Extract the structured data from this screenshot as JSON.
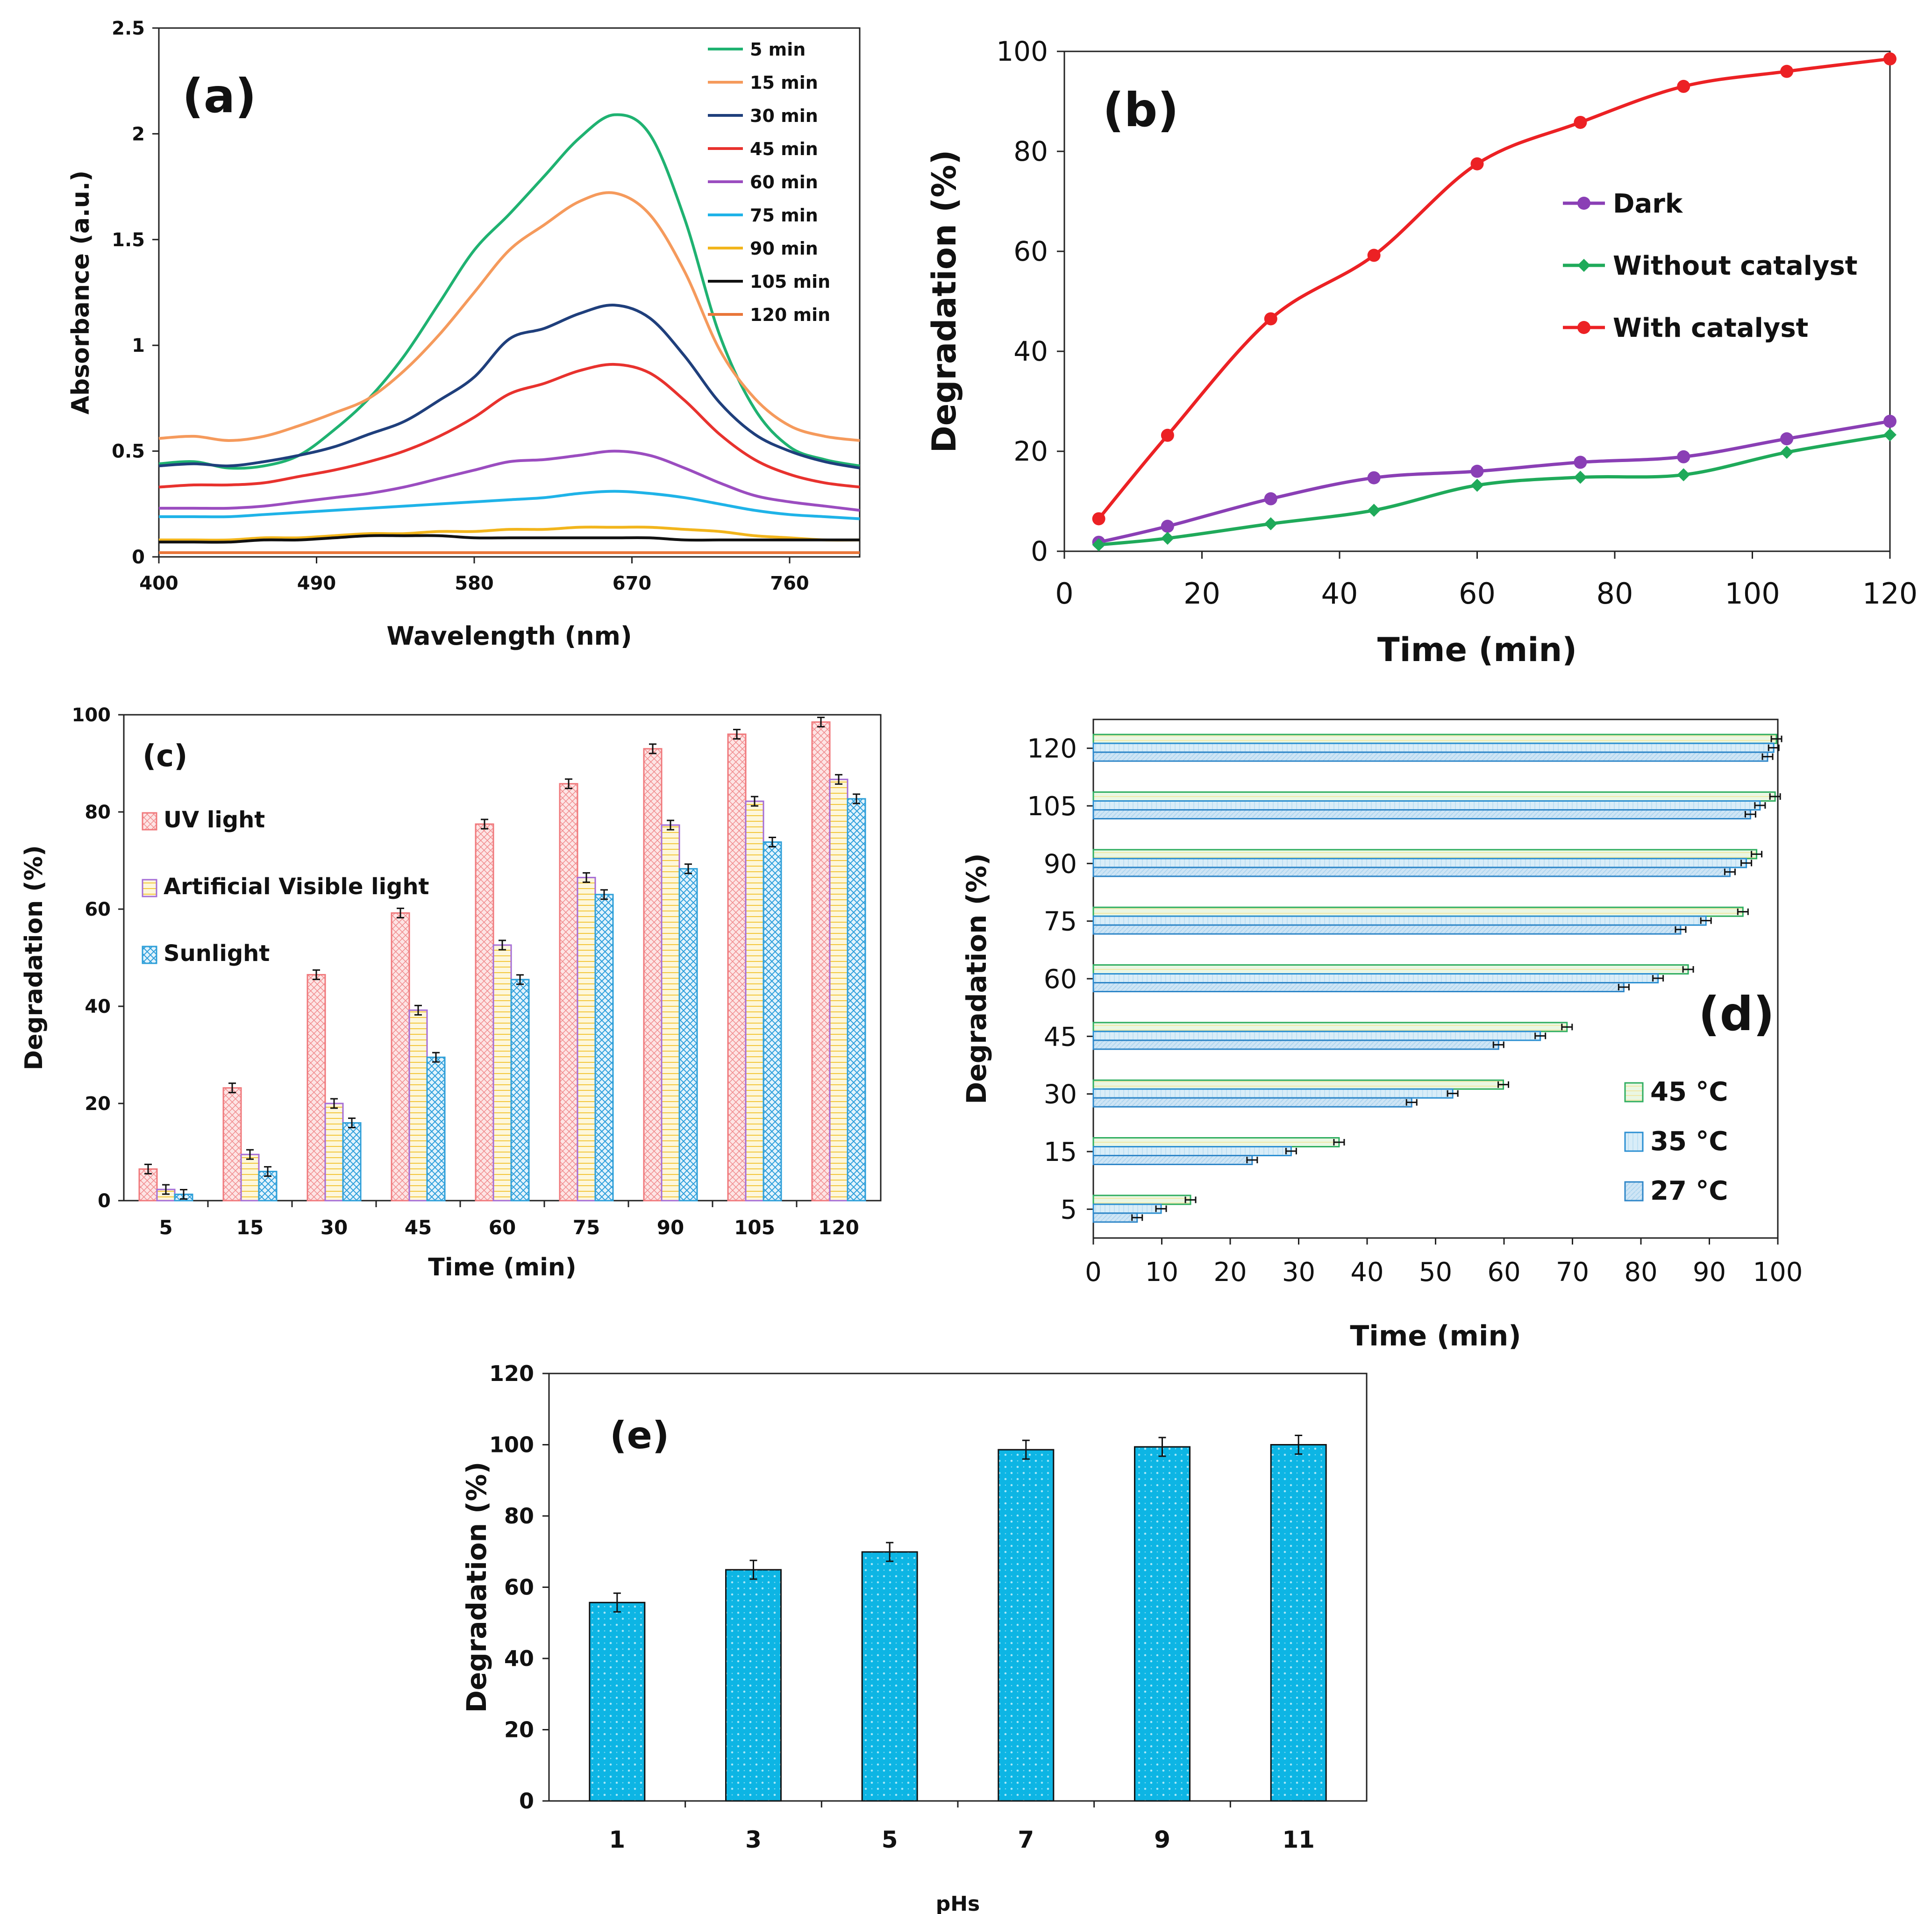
{
  "chart_data": [
    {
      "id": "a",
      "type": "line",
      "panel_label": "(a)",
      "title": "",
      "xlabel": "Wavelength (nm)",
      "ylabel": "Absorbance (a.u.)",
      "xlim": [
        400,
        800
      ],
      "ylim": [
        0,
        2.5
      ],
      "xticks": [
        "400",
        "490",
        "580",
        "670",
        "760"
      ],
      "xtick_values": [
        400,
        490,
        580,
        670,
        760
      ],
      "yticks": [
        "0",
        "0.5",
        "1",
        "1.5",
        "2",
        "2.5"
      ],
      "ytick_values": [
        0,
        0.5,
        1,
        1.5,
        2,
        2.5
      ],
      "legend_position": "top-right",
      "x": [
        400,
        420,
        440,
        460,
        480,
        500,
        520,
        540,
        560,
        580,
        600,
        620,
        640,
        660,
        680,
        700,
        720,
        740,
        760,
        780,
        800
      ],
      "series": [
        {
          "name": "5 min",
          "color": "#1fb271",
          "values": [
            0.44,
            0.45,
            0.42,
            0.43,
            0.48,
            0.6,
            0.75,
            0.95,
            1.2,
            1.45,
            1.62,
            1.8,
            1.98,
            2.09,
            2.0,
            1.6,
            1.05,
            0.7,
            0.52,
            0.46,
            0.43
          ]
        },
        {
          "name": "15 min",
          "color": "#f59a5c",
          "values": [
            0.56,
            0.57,
            0.55,
            0.57,
            0.62,
            0.68,
            0.75,
            0.88,
            1.05,
            1.25,
            1.45,
            1.57,
            1.68,
            1.72,
            1.62,
            1.35,
            0.98,
            0.75,
            0.62,
            0.57,
            0.55
          ]
        },
        {
          "name": "30 min",
          "color": "#1f3f7c",
          "values": [
            0.43,
            0.44,
            0.43,
            0.45,
            0.48,
            0.52,
            0.58,
            0.64,
            0.74,
            0.85,
            1.03,
            1.08,
            1.15,
            1.19,
            1.13,
            0.95,
            0.73,
            0.58,
            0.5,
            0.45,
            0.42
          ]
        },
        {
          "name": "45 min",
          "color": "#e8322e",
          "values": [
            0.33,
            0.34,
            0.34,
            0.35,
            0.38,
            0.41,
            0.45,
            0.5,
            0.57,
            0.66,
            0.77,
            0.82,
            0.88,
            0.91,
            0.87,
            0.74,
            0.58,
            0.46,
            0.39,
            0.35,
            0.33
          ]
        },
        {
          "name": "60 min",
          "color": "#9b4dc0",
          "values": [
            0.23,
            0.23,
            0.23,
            0.24,
            0.26,
            0.28,
            0.3,
            0.33,
            0.37,
            0.41,
            0.45,
            0.46,
            0.48,
            0.5,
            0.48,
            0.42,
            0.35,
            0.29,
            0.26,
            0.24,
            0.22
          ]
        },
        {
          "name": "75 min",
          "color": "#1fb3e8",
          "values": [
            0.19,
            0.19,
            0.19,
            0.2,
            0.21,
            0.22,
            0.23,
            0.24,
            0.25,
            0.26,
            0.27,
            0.28,
            0.3,
            0.31,
            0.3,
            0.28,
            0.25,
            0.22,
            0.2,
            0.19,
            0.18
          ]
        },
        {
          "name": "90 min",
          "color": "#f2b51c",
          "values": [
            0.08,
            0.08,
            0.08,
            0.09,
            0.09,
            0.1,
            0.11,
            0.11,
            0.12,
            0.12,
            0.13,
            0.13,
            0.14,
            0.14,
            0.14,
            0.13,
            0.12,
            0.1,
            0.09,
            0.08,
            0.08
          ]
        },
        {
          "name": "105 min",
          "color": "#111111",
          "values": [
            0.07,
            0.07,
            0.07,
            0.08,
            0.08,
            0.09,
            0.1,
            0.1,
            0.1,
            0.09,
            0.09,
            0.09,
            0.09,
            0.09,
            0.09,
            0.08,
            0.08,
            0.08,
            0.08,
            0.08,
            0.08
          ]
        },
        {
          "name": "120 min",
          "color": "#e9763a",
          "values": [
            0.02,
            0.02,
            0.02,
            0.02,
            0.02,
            0.02,
            0.02,
            0.02,
            0.02,
            0.02,
            0.02,
            0.02,
            0.02,
            0.02,
            0.02,
            0.02,
            0.02,
            0.02,
            0.02,
            0.02,
            0.02
          ]
        }
      ]
    },
    {
      "id": "b",
      "type": "line",
      "panel_label": "(b)",
      "title": "",
      "xlabel": "Time (min)",
      "ylabel": "Degradation (%)",
      "xlim": [
        0,
        120
      ],
      "ylim": [
        0,
        100
      ],
      "xticks": [
        "0",
        "20",
        "40",
        "60",
        "80",
        "100",
        "120"
      ],
      "xtick_values": [
        0,
        20,
        40,
        60,
        80,
        100,
        120
      ],
      "yticks": [
        "0",
        "20",
        "40",
        "60",
        "80",
        "100"
      ],
      "ytick_values": [
        0,
        20,
        40,
        60,
        80,
        100
      ],
      "legend_position": "center-right",
      "x": [
        5,
        15,
        30,
        45,
        60,
        75,
        90,
        105,
        120
      ],
      "series": [
        {
          "name": "Dark",
          "color": "#8a3fb5",
          "marker": "circle",
          "values": [
            1.8,
            5.0,
            10.5,
            14.7,
            16.0,
            17.8,
            18.9,
            22.5,
            26.0
          ]
        },
        {
          "name": "Without catalyst",
          "color": "#1faa5a",
          "marker": "diamond",
          "values": [
            1.3,
            2.6,
            5.5,
            8.2,
            13.2,
            14.8,
            15.3,
            19.8,
            23.3
          ]
        },
        {
          "name": "With catalyst",
          "color": "#ec2124",
          "marker": "circle",
          "values": [
            6.5,
            23.2,
            46.5,
            59.2,
            77.5,
            85.8,
            93.0,
            96.0,
            98.5
          ]
        }
      ]
    },
    {
      "id": "c",
      "type": "bar",
      "panel_label": "(c)",
      "title": "",
      "xlabel": "Time (min)",
      "ylabel": "Degradation (%)",
      "ylim": [
        0,
        100
      ],
      "yticks": [
        "0",
        "20",
        "40",
        "60",
        "80",
        "100"
      ],
      "ytick_values": [
        0,
        20,
        40,
        60,
        80,
        100
      ],
      "categories": [
        "5",
        "15",
        "30",
        "45",
        "60",
        "75",
        "90",
        "105",
        "120"
      ],
      "legend_position": "top-left",
      "series": [
        {
          "name": "UV light",
          "color": "#f0797c",
          "fill": "#fde7e7",
          "values": [
            6.5,
            23.2,
            46.5,
            59.2,
            77.5,
            85.8,
            93.0,
            96.0,
            98.5
          ]
        },
        {
          "name": "Artificial Visible light",
          "color": "#a56dd6",
          "fill": "#fdf6d6",
          "values": [
            2.3,
            9.5,
            20.0,
            39.2,
            52.6,
            66.5,
            77.3,
            82.2,
            86.7
          ]
        },
        {
          "name": "Sunlight",
          "color": "#2e9fd8",
          "fill": "#dff1fb",
          "values": [
            1.3,
            6.0,
            16.0,
            29.5,
            45.5,
            63.0,
            68.3,
            73.8,
            82.7
          ]
        }
      ]
    },
    {
      "id": "d",
      "type": "bar",
      "orientation": "horizontal",
      "panel_label": "(d)",
      "title": "",
      "xlabel": "Time (min)",
      "ylabel": "Degradation (%)",
      "xlim": [
        0,
        100
      ],
      "xticks": [
        "0",
        "10",
        "20",
        "30",
        "40",
        "50",
        "60",
        "70",
        "80",
        "90",
        "100"
      ],
      "xtick_values": [
        0,
        10,
        20,
        30,
        40,
        50,
        60,
        70,
        80,
        90,
        100
      ],
      "categories": [
        "5",
        "15",
        "30",
        "45",
        "60",
        "75",
        "90",
        "105",
        "120"
      ],
      "legend_position": "bottom-right",
      "series": [
        {
          "name": "45 °C",
          "color": "#2fae60",
          "fill": "#e8f7e8",
          "values": [
            14.2,
            35.9,
            59.9,
            69.2,
            86.9,
            94.9,
            96.9,
            99.6,
            99.8
          ]
        },
        {
          "name": "35 °C",
          "color": "#2b8fd2",
          "fill": "#d6ecf9",
          "values": [
            9.9,
            28.9,
            52.5,
            65.3,
            82.5,
            89.5,
            95.4,
            97.4,
            99.4
          ]
        },
        {
          "name": "27 °C",
          "color": "#2e86c8",
          "fill": "#cfe6f6",
          "values": [
            6.4,
            23.2,
            46.5,
            59.2,
            77.5,
            85.8,
            93.0,
            96.0,
            98.5
          ]
        }
      ]
    },
    {
      "id": "e",
      "type": "bar",
      "panel_label": "(e)",
      "title": "",
      "xlabel": "pHs",
      "ylabel": "Degradation (%)",
      "ylim": [
        0,
        120
      ],
      "yticks": [
        "0",
        "20",
        "40",
        "60",
        "80",
        "100",
        "120"
      ],
      "ytick_values": [
        0,
        20,
        40,
        60,
        80,
        100,
        120
      ],
      "categories": [
        "1",
        "3",
        "5",
        "7",
        "9",
        "11"
      ],
      "series": [
        {
          "name": "Degradation",
          "color": "#0db5e4",
          "values": [
            55.7,
            64.9,
            69.9,
            98.6,
            99.4,
            100.0
          ]
        }
      ]
    }
  ]
}
